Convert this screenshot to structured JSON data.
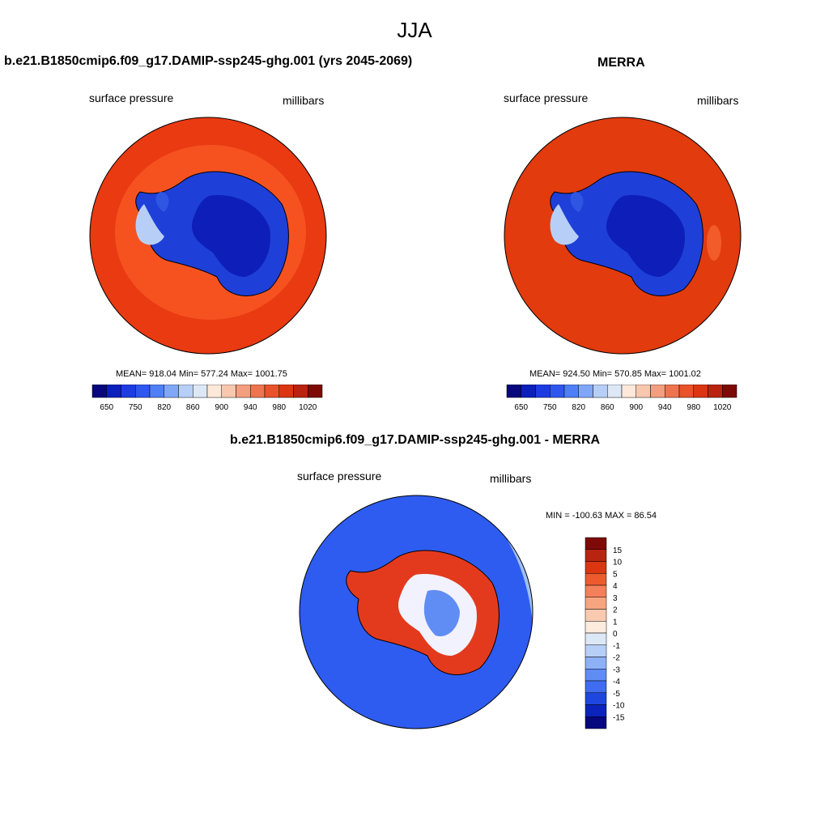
{
  "page_title": "JJA",
  "panels": [
    {
      "title": "b.e21.B1850cmip6.f09_g17.DAMIP-ssp245-ghg.001 (yrs 2045-2069)",
      "variable": "surface pressure",
      "units": "millibars",
      "stats": "MEAN= 918.04  Min= 577.24  Max= 1001.75",
      "colors": {
        "ocean": "#e93a12",
        "ocean_inner": "#f65220",
        "ice_deep": "#0d1fb8",
        "ice_mid": "#2f55e3"
      }
    },
    {
      "title": "MERRA",
      "variable": "surface pressure",
      "units": "millibars",
      "stats": "MEAN= 924.50  Min= 570.85  Max= 1001.02",
      "colors": {
        "ocean": "#e23b0e",
        "ocean_inner": "#e23b0e",
        "ice_deep": "#0d1fb8",
        "ice_mid": "#2f55e3"
      }
    },
    {
      "title": "b.e21.B1850cmip6.f09_g17.DAMIP-ssp245-ghg.001 - MERRA",
      "variable": "surface pressure",
      "units": "millibars",
      "stats": "MIN = -100.63 MAX =  86.54",
      "colors": {
        "ocean": "#2e5cf0",
        "ocean_light": "#9fc0f5",
        "ice_mix_red": "#e33a1d",
        "ice_mix_white": "#f2f2ff"
      }
    }
  ],
  "colorbar_abs": {
    "colors": [
      "#07087d",
      "#0a1fbc",
      "#1d3be3",
      "#2f57ef",
      "#4f7ff6",
      "#80a7f7",
      "#b7cff7",
      "#dde8f7",
      "#fde8da",
      "#f8c7ad",
      "#f39e7e",
      "#ee744f",
      "#e9522a",
      "#db3512",
      "#b92410",
      "#7e0a08"
    ],
    "labels": [
      "650",
      "750",
      "820",
      "860",
      "900",
      "940",
      "980",
      "1020"
    ]
  },
  "colorbar_diff": {
    "colors": [
      "#7e0a08",
      "#b92410",
      "#db3512",
      "#ee5a30",
      "#f3805a",
      "#f6a57f",
      "#f9cab0",
      "#fdebde",
      "#dde8f7",
      "#b7cff7",
      "#8eb1f6",
      "#5f8df4",
      "#3f6cf0",
      "#1f47e0",
      "#0a24bb",
      "#06087e"
    ],
    "labels": [
      "15",
      "10",
      "5",
      "4",
      "3",
      "2",
      "1",
      "0",
      "-1",
      "-2",
      "-3",
      "-4",
      "-5",
      "-10",
      "-15"
    ]
  }
}
